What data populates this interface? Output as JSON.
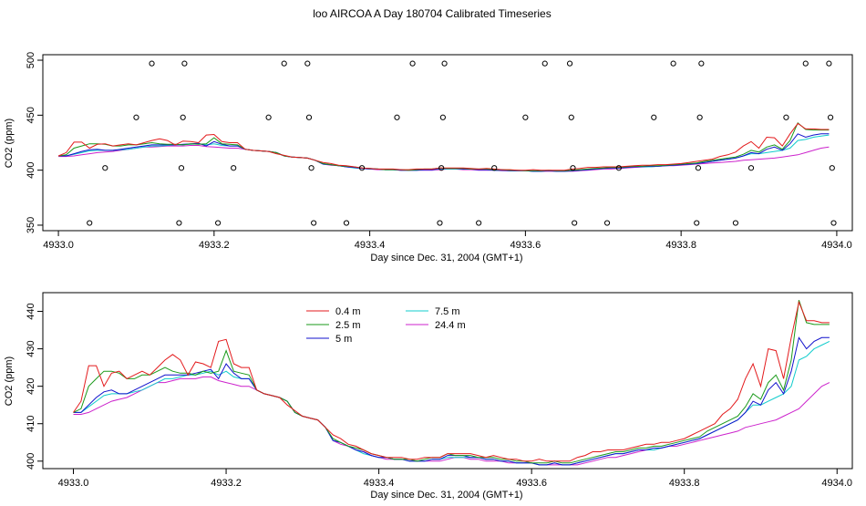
{
  "page_title": "loo AIRCOA A  Day 180704  Calibrated Timeseries",
  "chart_data": [
    {
      "type": "line",
      "panel": "top",
      "title": "loo AIRCOA A  Day 180704  Calibrated Timeseries",
      "xlabel": "Day since Dec. 31, 2004 (GMT+1)",
      "ylabel": "CO2 (ppm)",
      "xlim": [
        4932.98,
        4934.02
      ],
      "ylim": [
        345,
        505
      ],
      "x_ticks": [
        4933.0,
        4933.2,
        4933.4,
        4933.6,
        4933.8,
        4934.0
      ],
      "x_tick_labels": [
        "4933.0",
        "4933.2",
        "4933.4",
        "4933.6",
        "4933.8",
        "4934.0"
      ],
      "y_ticks": [
        350,
        400,
        450,
        500
      ],
      "y_tick_labels": [
        "350",
        "400",
        "450",
        "500"
      ],
      "series_ref": "shared",
      "calibration_points": [
        {
          "x": 4933.04,
          "y": 352
        },
        {
          "x": 4933.06,
          "y": 402
        },
        {
          "x": 4933.1,
          "y": 448
        },
        {
          "x": 4933.12,
          "y": 497
        },
        {
          "x": 4933.155,
          "y": 352
        },
        {
          "x": 4933.158,
          "y": 402
        },
        {
          "x": 4933.16,
          "y": 448
        },
        {
          "x": 4933.162,
          "y": 497
        },
        {
          "x": 4933.205,
          "y": 352
        },
        {
          "x": 4933.225,
          "y": 402
        },
        {
          "x": 4933.27,
          "y": 448
        },
        {
          "x": 4933.29,
          "y": 497
        },
        {
          "x": 4933.32,
          "y": 497
        },
        {
          "x": 4933.322,
          "y": 448
        },
        {
          "x": 4933.325,
          "y": 402
        },
        {
          "x": 4933.328,
          "y": 352
        },
        {
          "x": 4933.37,
          "y": 352
        },
        {
          "x": 4933.39,
          "y": 402
        },
        {
          "x": 4933.435,
          "y": 448
        },
        {
          "x": 4933.455,
          "y": 497
        },
        {
          "x": 4933.49,
          "y": 352
        },
        {
          "x": 4933.492,
          "y": 402
        },
        {
          "x": 4933.494,
          "y": 448
        },
        {
          "x": 4933.496,
          "y": 497
        },
        {
          "x": 4933.54,
          "y": 352
        },
        {
          "x": 4933.56,
          "y": 402
        },
        {
          "x": 4933.6,
          "y": 448
        },
        {
          "x": 4933.625,
          "y": 497
        },
        {
          "x": 4933.657,
          "y": 497
        },
        {
          "x": 4933.659,
          "y": 448
        },
        {
          "x": 4933.661,
          "y": 402
        },
        {
          "x": 4933.663,
          "y": 352
        },
        {
          "x": 4933.705,
          "y": 352
        },
        {
          "x": 4933.72,
          "y": 402
        },
        {
          "x": 4933.765,
          "y": 448
        },
        {
          "x": 4933.79,
          "y": 497
        },
        {
          "x": 4933.82,
          "y": 352
        },
        {
          "x": 4933.822,
          "y": 402
        },
        {
          "x": 4933.824,
          "y": 448
        },
        {
          "x": 4933.826,
          "y": 497
        },
        {
          "x": 4933.87,
          "y": 352
        },
        {
          "x": 4933.89,
          "y": 402
        },
        {
          "x": 4933.935,
          "y": 448
        },
        {
          "x": 4933.96,
          "y": 497
        },
        {
          "x": 4933.99,
          "y": 497
        },
        {
          "x": 4933.992,
          "y": 448
        },
        {
          "x": 4933.994,
          "y": 402
        },
        {
          "x": 4933.996,
          "y": 352
        }
      ]
    },
    {
      "type": "line",
      "panel": "bottom",
      "title": "",
      "xlabel": "Day since Dec. 31, 2004 (GMT+1)",
      "ylabel": "CO2 (ppm)",
      "xlim": [
        4932.96,
        4934.02
      ],
      "ylim": [
        398,
        445
      ],
      "x_ticks": [
        4933.0,
        4933.2,
        4933.4,
        4933.6,
        4933.8,
        4934.0
      ],
      "x_tick_labels": [
        "4933.0",
        "4933.2",
        "4933.4",
        "4933.6",
        "4933.8",
        "4934.0"
      ],
      "y_ticks": [
        400,
        410,
        420,
        430,
        440
      ],
      "y_tick_labels": [
        "400",
        "410",
        "420",
        "430",
        "440"
      ],
      "legend": [
        {
          "name": "0.4 m",
          "color": "#e31a1c"
        },
        {
          "name": "2.5 m",
          "color": "#1a9a1a"
        },
        {
          "name": "5 m",
          "color": "#1111cc"
        },
        {
          "name": "7.5 m",
          "color": "#11cccc"
        },
        {
          "name": "24.4 m",
          "color": "#cc22cc"
        }
      ],
      "series_ref": "shared"
    }
  ],
  "shared_series": {
    "x": [
      4933.0,
      4933.01,
      4933.02,
      4933.03,
      4933.04,
      4933.05,
      4933.06,
      4933.07,
      4933.08,
      4933.09,
      4933.1,
      4933.11,
      4933.12,
      4933.13,
      4933.14,
      4933.15,
      4933.16,
      4933.17,
      4933.18,
      4933.19,
      4933.2,
      4933.21,
      4933.22,
      4933.23,
      4933.24,
      4933.25,
      4933.26,
      4933.27,
      4933.28,
      4933.29,
      4933.3,
      4933.31,
      4933.32,
      4933.33,
      4933.34,
      4933.35,
      4933.36,
      4933.37,
      4933.38,
      4933.39,
      4933.4,
      4933.41,
      4933.42,
      4933.43,
      4933.44,
      4933.45,
      4933.46,
      4933.47,
      4933.48,
      4933.49,
      4933.5,
      4933.51,
      4933.52,
      4933.53,
      4933.54,
      4933.55,
      4933.56,
      4933.57,
      4933.58,
      4933.59,
      4933.6,
      4933.61,
      4933.62,
      4933.63,
      4933.64,
      4933.65,
      4933.66,
      4933.67,
      4933.68,
      4933.69,
      4933.7,
      4933.71,
      4933.72,
      4933.73,
      4933.74,
      4933.75,
      4933.76,
      4933.77,
      4933.78,
      4933.79,
      4933.8,
      4933.81,
      4933.82,
      4933.83,
      4933.84,
      4933.85,
      4933.86,
      4933.87,
      4933.88,
      4933.89,
      4933.9,
      4933.91,
      4933.92,
      4933.93,
      4933.94,
      4933.95,
      4933.96,
      4933.97,
      4933.98,
      4933.99
    ],
    "series": [
      {
        "name": "0.4 m",
        "color": "#e31a1c",
        "values": [
          413,
          416,
          425.5,
          425.5,
          420,
          423.5,
          424,
          422,
          423,
          424,
          423,
          425,
          427,
          428.5,
          427,
          423,
          426.5,
          426,
          425,
          432,
          432.5,
          426,
          425,
          425,
          419,
          418,
          417.5,
          417,
          415,
          413.5,
          412,
          411.5,
          411,
          409,
          407,
          406,
          404.5,
          404,
          403,
          402,
          401.5,
          401,
          401,
          401,
          400.5,
          400.5,
          401,
          401,
          401,
          402,
          402,
          402,
          402,
          401.5,
          401,
          401.5,
          401,
          400.5,
          400.5,
          400,
          400,
          400.5,
          400,
          400,
          400,
          400,
          401,
          401.5,
          402.5,
          402.5,
          403,
          403,
          403,
          403.5,
          404,
          404.5,
          404.5,
          405,
          405,
          405.5,
          406,
          407,
          408,
          409,
          410,
          412.5,
          414,
          416.5,
          422,
          426,
          420,
          430,
          429.5,
          422,
          433,
          442.5,
          437.5,
          437.5,
          437,
          437
        ]
      },
      {
        "name": "2.5 m",
        "color": "#1a9a1a",
        "values": [
          413,
          414,
          420,
          422,
          424,
          424,
          423.5,
          422,
          422,
          423,
          423,
          424,
          425,
          424,
          423.5,
          423.5,
          423,
          424,
          423.5,
          424,
          429.5,
          424,
          423.5,
          423,
          419,
          418,
          417.5,
          417,
          416,
          413,
          412,
          411.5,
          411,
          409,
          406,
          405,
          404,
          403.5,
          403,
          402,
          401.5,
          401,
          400.5,
          400.5,
          400.5,
          400,
          400.5,
          401,
          401,
          402,
          401.5,
          401.5,
          401.5,
          401,
          401,
          401,
          400.5,
          400.5,
          400,
          400,
          399.5,
          399.5,
          399.5,
          400,
          399.5,
          399.5,
          400,
          400.5,
          401,
          401.5,
          402,
          402.5,
          402.5,
          403,
          403.5,
          403.5,
          404,
          404,
          404.5,
          405,
          405.5,
          406,
          406.5,
          408,
          409,
          410,
          411,
          412,
          414.5,
          418,
          416.5,
          421,
          423,
          419,
          427,
          443,
          437,
          436.5,
          436.5,
          436.5
        ]
      },
      {
        "name": "5 m",
        "color": "#1111cc",
        "values": [
          413,
          413,
          415,
          417,
          418.5,
          419,
          418,
          418,
          419,
          420,
          421,
          422,
          423,
          423,
          423,
          423,
          423.5,
          424,
          424.5,
          422,
          426,
          423.5,
          422,
          422,
          419,
          418,
          417.5,
          417,
          416,
          413,
          412,
          411.5,
          411,
          409,
          405.5,
          405,
          404,
          403,
          402.5,
          401.5,
          401,
          401,
          400.5,
          400.5,
          400,
          400,
          400,
          400.5,
          400.5,
          401.5,
          401.5,
          401.5,
          401,
          401,
          400.5,
          400.5,
          400,
          400,
          399.5,
          399.5,
          399.5,
          399,
          399,
          399.5,
          399,
          399,
          399.5,
          400,
          400.5,
          401,
          401.5,
          402,
          402,
          402.5,
          403,
          403,
          403.5,
          403.5,
          404,
          404.5,
          405,
          405.5,
          406,
          407,
          408,
          409,
          410,
          411,
          413,
          416,
          415,
          419,
          421,
          418,
          424,
          433,
          430,
          432,
          433,
          433
        ]
      },
      {
        "name": "7.5 m",
        "color": "#11cccc",
        "values": [
          413,
          413,
          414.5,
          416,
          417.5,
          418,
          418,
          418,
          418.5,
          419,
          420,
          421,
          422,
          422,
          422.5,
          423,
          423,
          423.5,
          424,
          423,
          424,
          422.5,
          422,
          422,
          419,
          418,
          417.5,
          417,
          416,
          413,
          412,
          411.5,
          411,
          409,
          405.5,
          405,
          404,
          403,
          402,
          401.5,
          401,
          401,
          400.5,
          400.5,
          400,
          400,
          400,
          400.5,
          400.5,
          401,
          401,
          401,
          401,
          401,
          400.5,
          400.5,
          400,
          400,
          399.5,
          399.5,
          399.5,
          399,
          399,
          399.5,
          399,
          399,
          399.5,
          400,
          400.5,
          401,
          401.5,
          402,
          402,
          402.5,
          403,
          403,
          403,
          403.5,
          404,
          404.5,
          405,
          405.5,
          406,
          407,
          408,
          409,
          410,
          411,
          413,
          415,
          415,
          416,
          417,
          418,
          420,
          427,
          428,
          430,
          431,
          432
        ]
      },
      {
        "name": "24.4 m",
        "color": "#cc22cc",
        "values": [
          412.5,
          412.5,
          413,
          414,
          415,
          416,
          416.5,
          417,
          418,
          419,
          420,
          421,
          421,
          421.5,
          422,
          422,
          422,
          422.5,
          422.5,
          421.5,
          421,
          420.5,
          420,
          420,
          419,
          418,
          417.5,
          417,
          416,
          413,
          412,
          411.5,
          411,
          409,
          405.5,
          404.5,
          404,
          403,
          402.5,
          401.5,
          401,
          400.5,
          400.5,
          400.5,
          400,
          400,
          400,
          400,
          400,
          400.5,
          401,
          401,
          400.5,
          400.5,
          400,
          400,
          400,
          399.5,
          399.5,
          399.5,
          399.5,
          399,
          399,
          399,
          399,
          399,
          399,
          399.5,
          400,
          400.5,
          401,
          401,
          401.5,
          402,
          402.5,
          403,
          403,
          403.5,
          404,
          404,
          404.5,
          405,
          405.5,
          406,
          406.5,
          407,
          407.5,
          408,
          409,
          409.5,
          410,
          410.5,
          411,
          412,
          413,
          414,
          416,
          418,
          420,
          421
        ]
      }
    ]
  }
}
